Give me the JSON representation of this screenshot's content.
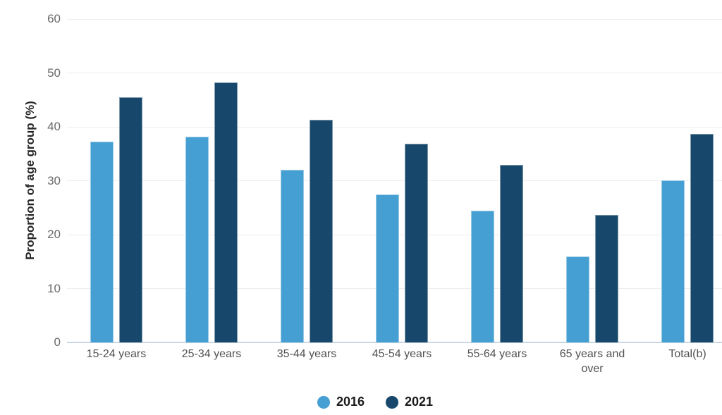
{
  "chart_data": {
    "type": "bar",
    "title": "",
    "ylabel": "Proportion of age group (%)",
    "categories": [
      "15-24 years",
      "25-34 years",
      "35-44 years",
      "45-54 years",
      "55-64 years",
      "65 years and over",
      "Total(b)"
    ],
    "series": [
      {
        "name": "2016",
        "color": "#459FD2",
        "values": [
          37.2,
          38.2,
          32.0,
          27.4,
          24.5,
          16.0,
          30.1
        ]
      },
      {
        "name": "2021",
        "color": "#17486B",
        "values": [
          45.5,
          48.3,
          41.3,
          36.8,
          32.9,
          23.7,
          38.7
        ]
      }
    ],
    "ylim": [
      0,
      60
    ],
    "yticks": [
      0,
      10,
      20,
      30,
      40,
      50,
      60
    ],
    "grid": true,
    "legend_position": "bottom",
    "legend_marker": "circle",
    "colors": {
      "gridline": "#EDEDED",
      "baseline": "#C9D7E4",
      "tick_label": "#6A6A6A",
      "category_label": "#515151",
      "legend_label": "#1B1B1B",
      "axis_title": "#262626",
      "background": "#FFFFFF"
    }
  }
}
